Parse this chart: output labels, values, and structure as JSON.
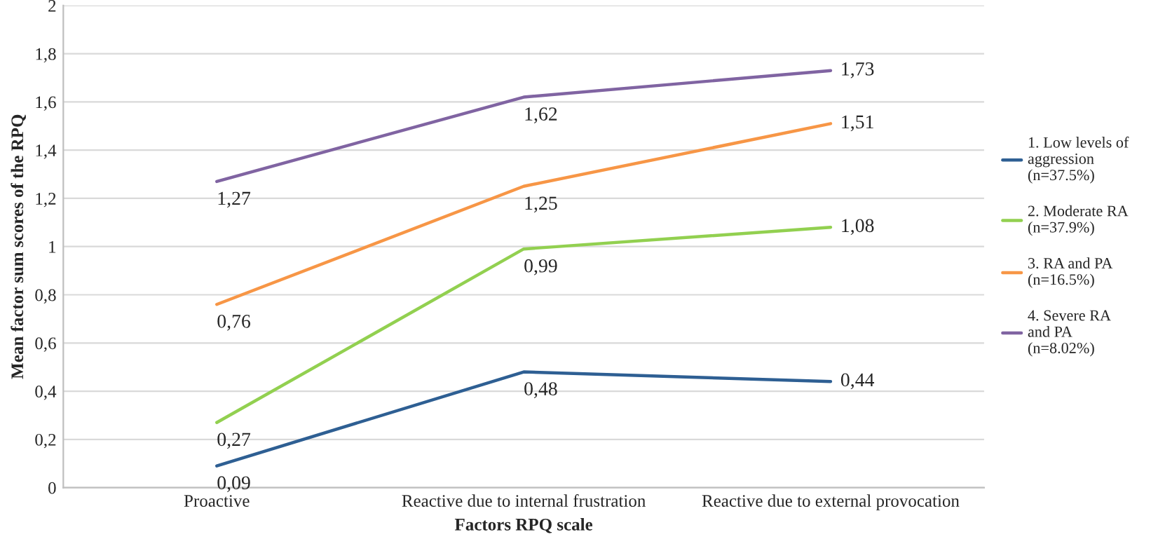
{
  "chart_data": {
    "type": "line",
    "xlabel": "Factors RPQ scale",
    "ylabel": "Mean factor sum scores of the RPQ",
    "categories": [
      "Proactive",
      "Reactive due to internal frustration",
      "Reactive due to external provocation"
    ],
    "series": [
      {
        "name": "1. Low levels of\naggression\n(n=37.5%)",
        "color": "#2e5f93",
        "values": [
          0.09,
          0.48,
          0.44
        ],
        "value_labels": [
          "0,09",
          "0,48",
          "0,44"
        ]
      },
      {
        "name": "2. Moderate RA\n(n=37.9%)",
        "color": "#92d050",
        "values": [
          0.27,
          0.99,
          1.08
        ],
        "value_labels": [
          "0,27",
          "0,99",
          "1,08"
        ]
      },
      {
        "name": "3. RA and PA\n(n=16.5%)",
        "color": "#f79646",
        "values": [
          0.76,
          1.25,
          1.51
        ],
        "value_labels": [
          "0,76",
          "1,25",
          "1,51"
        ]
      },
      {
        "name": "4. Severe RA\nand PA\n(n=8.02%)",
        "color": "#8064a2",
        "values": [
          1.27,
          1.62,
          1.73
        ],
        "value_labels": [
          "1,27",
          "1,62",
          "1,73"
        ]
      }
    ],
    "ylim": [
      0,
      2
    ],
    "yticks": [
      0,
      {
        "value": 0.2,
        "label": "0,2"
      },
      {
        "value": 0.4,
        "label": "0,4"
      },
      {
        "value": 0.6,
        "label": "0,6"
      },
      {
        "value": 0.8,
        "label": "0,8"
      },
      1,
      {
        "value": 1.2,
        "label": "1,2"
      },
      {
        "value": 1.4,
        "label": "1,4"
      },
      {
        "value": 1.6,
        "label": "1,6"
      },
      {
        "value": 1.8,
        "label": "1,8"
      },
      2
    ],
    "grid": "y",
    "legend": "right",
    "marker": "none",
    "line_style": "solid"
  }
}
